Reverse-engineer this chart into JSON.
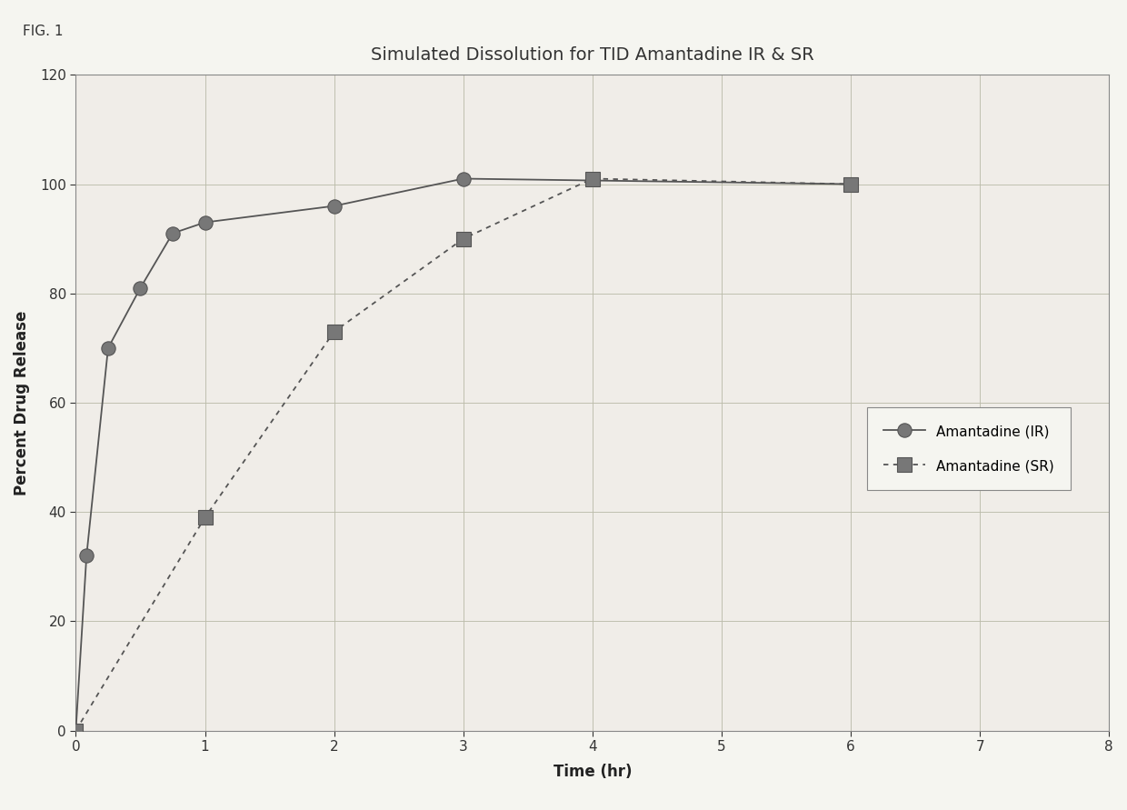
{
  "title": "Simulated Dissolution for TID Amantadine IR & SR",
  "fig_label": "FIG. 1",
  "xlabel": "Time (hr)",
  "ylabel": "Percent Drug Release",
  "xlim": [
    0,
    8
  ],
  "ylim": [
    0,
    120
  ],
  "xticks": [
    0,
    1,
    2,
    3,
    4,
    5,
    6,
    7,
    8
  ],
  "yticks": [
    0,
    20,
    40,
    60,
    80,
    100,
    120
  ],
  "ir_x": [
    0.0,
    0.083,
    0.25,
    0.5,
    0.75,
    1.0,
    2.0,
    3.0,
    6.0
  ],
  "ir_y": [
    0.0,
    32,
    70,
    81,
    91,
    93,
    96,
    101,
    100
  ],
  "sr_x": [
    0.0,
    1.0,
    2.0,
    3.0,
    4.0,
    6.0
  ],
  "sr_y": [
    0.0,
    39,
    73,
    90,
    101,
    100
  ],
  "line_color": "#555555",
  "marker_color": "#777777",
  "background_color": "#f5f5f0",
  "plot_bg_color": "#f0ede8",
  "grid_color": "#bbbbaa",
  "legend_ir": "Amantadine (IR)",
  "legend_sr": "Amantadine (SR)",
  "title_fontsize": 14,
  "label_fontsize": 12,
  "tick_fontsize": 11,
  "legend_fontsize": 11
}
